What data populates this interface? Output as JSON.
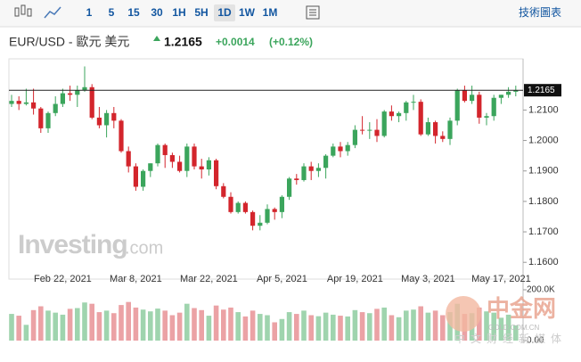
{
  "toolbar": {
    "intervals": [
      "1",
      "5",
      "15",
      "30",
      "1H",
      "5H",
      "1D",
      "1W",
      "1M"
    ],
    "active": 6,
    "right_link": "技術圖表"
  },
  "header": {
    "title": "EUR/USD - 歐元 美元",
    "change": "+0.0014",
    "change_pct": "(+0.12%)"
  },
  "watermark": {
    "brand": "Investing",
    "brand_suffix": ".com",
    "cn_name": "中金网",
    "cn_site": "GOLD.COM.CN",
    "cn_slogan": "中文财经新媒体"
  },
  "chart_data": {
    "type": "candlestick",
    "up_color": "#3ba55c",
    "down_color": "#d3252c",
    "up_volume_color": "#9fd4ae",
    "down_volume_color": "#eba2a5",
    "categories": [
      null,
      null,
      null,
      null,
      null,
      null,
      null,
      "Feb 22, 2021",
      null,
      null,
      null,
      null,
      null,
      null,
      null,
      null,
      null,
      "Mar 8, 2021",
      null,
      null,
      null,
      null,
      null,
      null,
      null,
      null,
      null,
      "Mar 22, 2021",
      null,
      null,
      null,
      null,
      null,
      null,
      null,
      null,
      null,
      "Apr 5, 2021",
      null,
      null,
      null,
      null,
      null,
      null,
      null,
      null,
      null,
      "Apr 19, 2021",
      null,
      null,
      null,
      null,
      null,
      null,
      null,
      null,
      null,
      "May 3, 2021",
      null,
      null,
      null,
      null,
      null,
      null,
      null,
      null,
      null,
      "May 17, 2021",
      null,
      null
    ],
    "open": [
      1.212,
      1.213,
      1.212,
      1.2125,
      1.2105,
      1.204,
      1.209,
      1.212,
      1.2155,
      1.215,
      1.2165,
      1.2175,
      1.2075,
      1.205,
      1.209,
      1.2065,
      1.1965,
      1.1915,
      1.1848,
      1.19,
      1.1925,
      1.1985,
      1.1952,
      1.193,
      1.19,
      1.198,
      1.1915,
      1.1905,
      1.1935,
      1.185,
      1.1815,
      1.1765,
      1.1795,
      1.1765,
      1.172,
      1.173,
      1.1775,
      1.1765,
      1.1815,
      1.1875,
      1.187,
      1.1915,
      1.19,
      1.191,
      1.195,
      1.198,
      1.1965,
      1.1985,
      1.2035,
      1.2033,
      1.2035,
      1.2015,
      1.2095,
      1.208,
      1.209,
      1.2125,
      1.2127,
      1.202,
      1.206,
      1.2015,
      1.2005,
      1.2065,
      1.2165,
      1.213,
      1.215,
      1.2075,
      1.208,
      1.214,
      1.215,
      1.216
    ],
    "high": [
      1.215,
      1.2145,
      1.217,
      1.217,
      1.211,
      1.2095,
      1.2145,
      1.217,
      1.218,
      1.218,
      1.2243,
      1.2185,
      1.211,
      1.21,
      1.211,
      1.207,
      1.198,
      1.1925,
      1.1905,
      1.1925,
      1.199,
      1.199,
      1.196,
      1.195,
      1.199,
      1.199,
      1.194,
      1.1945,
      1.194,
      1.186,
      1.183,
      1.18,
      1.18,
      1.177,
      1.1755,
      1.179,
      1.178,
      1.182,
      1.188,
      1.189,
      1.1925,
      1.193,
      1.1925,
      1.1955,
      1.199,
      1.1995,
      1.1995,
      1.205,
      1.208,
      1.206,
      1.207,
      1.21,
      1.2115,
      1.2095,
      1.213,
      1.215,
      1.2135,
      1.2075,
      1.2065,
      1.203,
      1.2075,
      1.217,
      1.218,
      1.218,
      1.216,
      1.209,
      1.215,
      1.215,
      1.2175,
      1.218
    ],
    "low": [
      1.211,
      1.21,
      1.2115,
      1.2085,
      1.2025,
      1.2025,
      1.208,
      1.211,
      1.213,
      1.211,
      1.216,
      1.207,
      1.204,
      1.201,
      1.204,
      1.196,
      1.1895,
      1.1835,
      1.1835,
      1.188,
      1.1915,
      1.191,
      1.191,
      1.1895,
      1.188,
      1.1905,
      1.1875,
      1.1885,
      1.184,
      1.181,
      1.176,
      1.176,
      1.176,
      1.1705,
      1.1705,
      1.1725,
      1.174,
      1.1745,
      1.1805,
      1.1855,
      1.1865,
      1.187,
      1.188,
      1.1875,
      1.1945,
      1.1945,
      1.195,
      1.1975,
      1.202,
      1.2005,
      1.1995,
      1.201,
      1.2065,
      1.206,
      1.2065,
      1.21,
      1.2015,
      1.2015,
      1.199,
      1.1995,
      1.1985,
      1.205,
      1.2125,
      1.212,
      1.2055,
      1.205,
      1.2065,
      1.212,
      1.214,
      1.2145
    ],
    "close": [
      1.213,
      1.212,
      1.2125,
      1.2105,
      1.204,
      1.209,
      1.212,
      1.2155,
      1.215,
      1.2165,
      1.2175,
      1.2075,
      1.205,
      1.209,
      1.2065,
      1.1965,
      1.1915,
      1.1848,
      1.19,
      1.1925,
      1.1985,
      1.1952,
      1.193,
      1.19,
      1.198,
      1.1915,
      1.1905,
      1.1935,
      1.185,
      1.1815,
      1.1765,
      1.1795,
      1.1765,
      1.172,
      1.173,
      1.1775,
      1.1765,
      1.1815,
      1.1875,
      1.187,
      1.1915,
      1.19,
      1.191,
      1.195,
      1.198,
      1.1965,
      1.1985,
      1.2035,
      1.2033,
      1.2035,
      1.2015,
      1.2095,
      1.208,
      1.209,
      1.2125,
      1.2127,
      1.202,
      1.206,
      1.2015,
      1.2005,
      1.2065,
      1.2165,
      1.213,
      1.215,
      1.2075,
      1.208,
      1.214,
      1.215,
      1.216,
      1.2165
    ],
    "volume": [
      105000,
      98000,
      62000,
      120000,
      135000,
      118000,
      110000,
      102000,
      125000,
      128000,
      150000,
      145000,
      112000,
      118000,
      108000,
      140000,
      152000,
      130000,
      122000,
      115000,
      126000,
      118000,
      100000,
      110000,
      145000,
      128000,
      120000,
      98000,
      138000,
      122000,
      130000,
      112000,
      95000,
      118000,
      105000,
      100000,
      72000,
      85000,
      112000,
      105000,
      118000,
      100000,
      96000,
      110000,
      102000,
      98000,
      95000,
      120000,
      112000,
      108000,
      125000,
      130000,
      100000,
      92000,
      118000,
      122000,
      135000,
      110000,
      118000,
      100000,
      112000,
      145000,
      105000,
      108000,
      130000,
      115000,
      110000,
      90000,
      102000,
      60000
    ],
    "ylim": [
      1.1545,
      1.2268
    ],
    "yticks": [
      {
        "value": 1.16,
        "label": "1.1600"
      },
      {
        "value": 1.17,
        "label": "1.1700"
      },
      {
        "value": 1.18,
        "label": "1.1800"
      },
      {
        "value": 1.19,
        "label": "1.1900"
      },
      {
        "value": 1.2,
        "label": "1.2000"
      },
      {
        "value": 1.21,
        "label": "1.2100"
      }
    ],
    "volume_ylim": [
      0,
      200000
    ],
    "volume_ticks": [
      {
        "value": 200000,
        "label": "200.0K"
      },
      {
        "value": 0,
        "label": "0.00"
      }
    ]
  }
}
